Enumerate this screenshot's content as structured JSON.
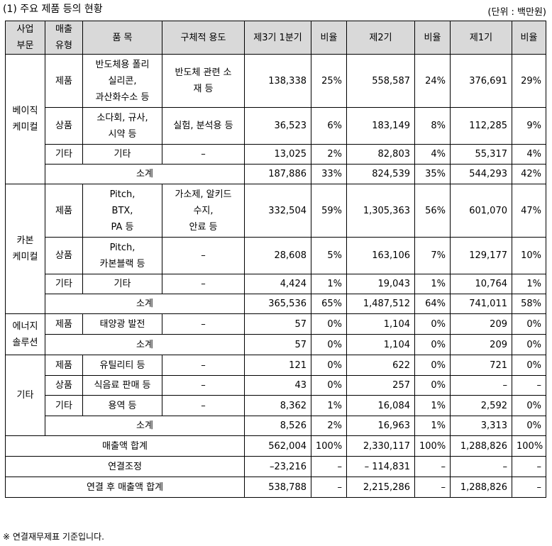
{
  "title": "(1) 주요 제품 등의 현황",
  "unit": "(단위 : 백만원)",
  "header": {
    "segment": [
      "사업",
      "부문"
    ],
    "type": [
      "매출",
      "유형"
    ],
    "item": "품  목",
    "usage": "구체적 용도",
    "q3": "제3기 1분기",
    "ratio": "비율",
    "p2": "제2기",
    "p1": "제1기"
  },
  "basic": {
    "segment": [
      "베이직",
      "케미컬"
    ],
    "products": {
      "type": "제품",
      "item": [
        "반도체용 폴리",
        "실리콘,",
        "과산화수소 등"
      ],
      "usage": [
        "반도체 관련 소",
        "재 등"
      ],
      "q3": "138,338",
      "r3": "25%",
      "p2": "558,587",
      "r2": "24%",
      "p1": "376,691",
      "r1": "29%"
    },
    "goods": {
      "type": "상품",
      "item": [
        "소다회, 규사,",
        "시약 등"
      ],
      "usage": [
        "실험, 분석용 등"
      ],
      "q3": "36,523",
      "r3": "6%",
      "p2": "183,149",
      "r2": "8%",
      "p1": "112,285",
      "r1": "9%"
    },
    "other": {
      "type": "기타",
      "item": "기타",
      "usage": "–",
      "q3": "13,025",
      "r3": "2%",
      "p2": "82,803",
      "r2": "4%",
      "p1": "55,317",
      "r1": "4%"
    },
    "subtotal": {
      "label": "소계",
      "q3": "187,886",
      "r3": "33%",
      "p2": "824,539",
      "r2": "35%",
      "p1": "544,293",
      "r1": "42%"
    }
  },
  "carbon": {
    "segment": [
      "카본",
      "케미컬"
    ],
    "products": {
      "type": "제품",
      "item": [
        "Pitch,",
        "BTX,",
        "PA 등"
      ],
      "usage": [
        "가소제, 알키드",
        "수지,",
        "안료 등"
      ],
      "q3": "332,504",
      "r3": "59%",
      "p2": "1,305,363",
      "r2": "56%",
      "p1": "601,070",
      "r1": "47%"
    },
    "goods": {
      "type": "상품",
      "item": [
        "Pitch,",
        "카본블랙 등"
      ],
      "usage": "–",
      "q3": "28,608",
      "r3": "5%",
      "p2": "163,106",
      "r2": "7%",
      "p1": "129,177",
      "r1": "10%"
    },
    "other": {
      "type": "기타",
      "item": "기타",
      "usage": "–",
      "q3": "4,424",
      "r3": "1%",
      "p2": "19,043",
      "r2": "1%",
      "p1": "10,764",
      "r1": "1%"
    },
    "subtotal": {
      "label": "소계",
      "q3": "365,536",
      "r3": "65%",
      "p2": "1,487,512",
      "r2": "64%",
      "p1": "741,011",
      "r1": "58%"
    }
  },
  "energy": {
    "segment": [
      "에너지",
      "솔루션"
    ],
    "products": {
      "type": "제품",
      "item": "태양광 발전",
      "usage": "–",
      "q3": "57",
      "r3": "0%",
      "p2": "1,104",
      "r2": "0%",
      "p1": "209",
      "r1": "0%"
    },
    "subtotal": {
      "label": "소계",
      "q3": "57",
      "r3": "0%",
      "p2": "1,104",
      "r2": "0%",
      "p1": "209",
      "r1": "0%"
    }
  },
  "etc": {
    "segment": "기타",
    "products": {
      "type": "제품",
      "item": "유틸리티 등",
      "usage": "–",
      "q3": "121",
      "r3": "0%",
      "p2": "622",
      "r2": "0%",
      "p1": "721",
      "r1": "0%"
    },
    "goods": {
      "type": "상품",
      "item": "식음료 판매 등",
      "usage": "–",
      "q3": "43",
      "r3": "0%",
      "p2": "257",
      "r2": "0%",
      "p1": "–",
      "r1": "–"
    },
    "other": {
      "type": "기타",
      "item": "용역 등",
      "usage": "–",
      "q3": "8,362",
      "r3": "1%",
      "p2": "16,084",
      "r2": "1%",
      "p1": "2,592",
      "r1": "0%"
    },
    "subtotal": {
      "label": "소계",
      "q3": "8,526",
      "r3": "2%",
      "p2": "16,963",
      "r2": "1%",
      "p1": "3,313",
      "r1": "0%"
    }
  },
  "total": {
    "label": "매출액 합계",
    "q3": "562,004",
    "r3": "100%",
    "p2": "2,330,117",
    "r2": "100%",
    "p1": "1,288,826",
    "r1": "100%"
  },
  "adjust": {
    "label": "연결조정",
    "q3": "–23,216",
    "r3": "–",
    "p2": "– 114,831",
    "r2": "–",
    "p1": "–",
    "r1": "–"
  },
  "consolidated": {
    "label": "연결 후 매출액 합계",
    "q3": "538,788",
    "r3": "–",
    "p2": "2,215,286",
    "r2": "–",
    "p1": "1,288,826",
    "r1": "–"
  },
  "note": "※  연결재무제표 기준입니다."
}
